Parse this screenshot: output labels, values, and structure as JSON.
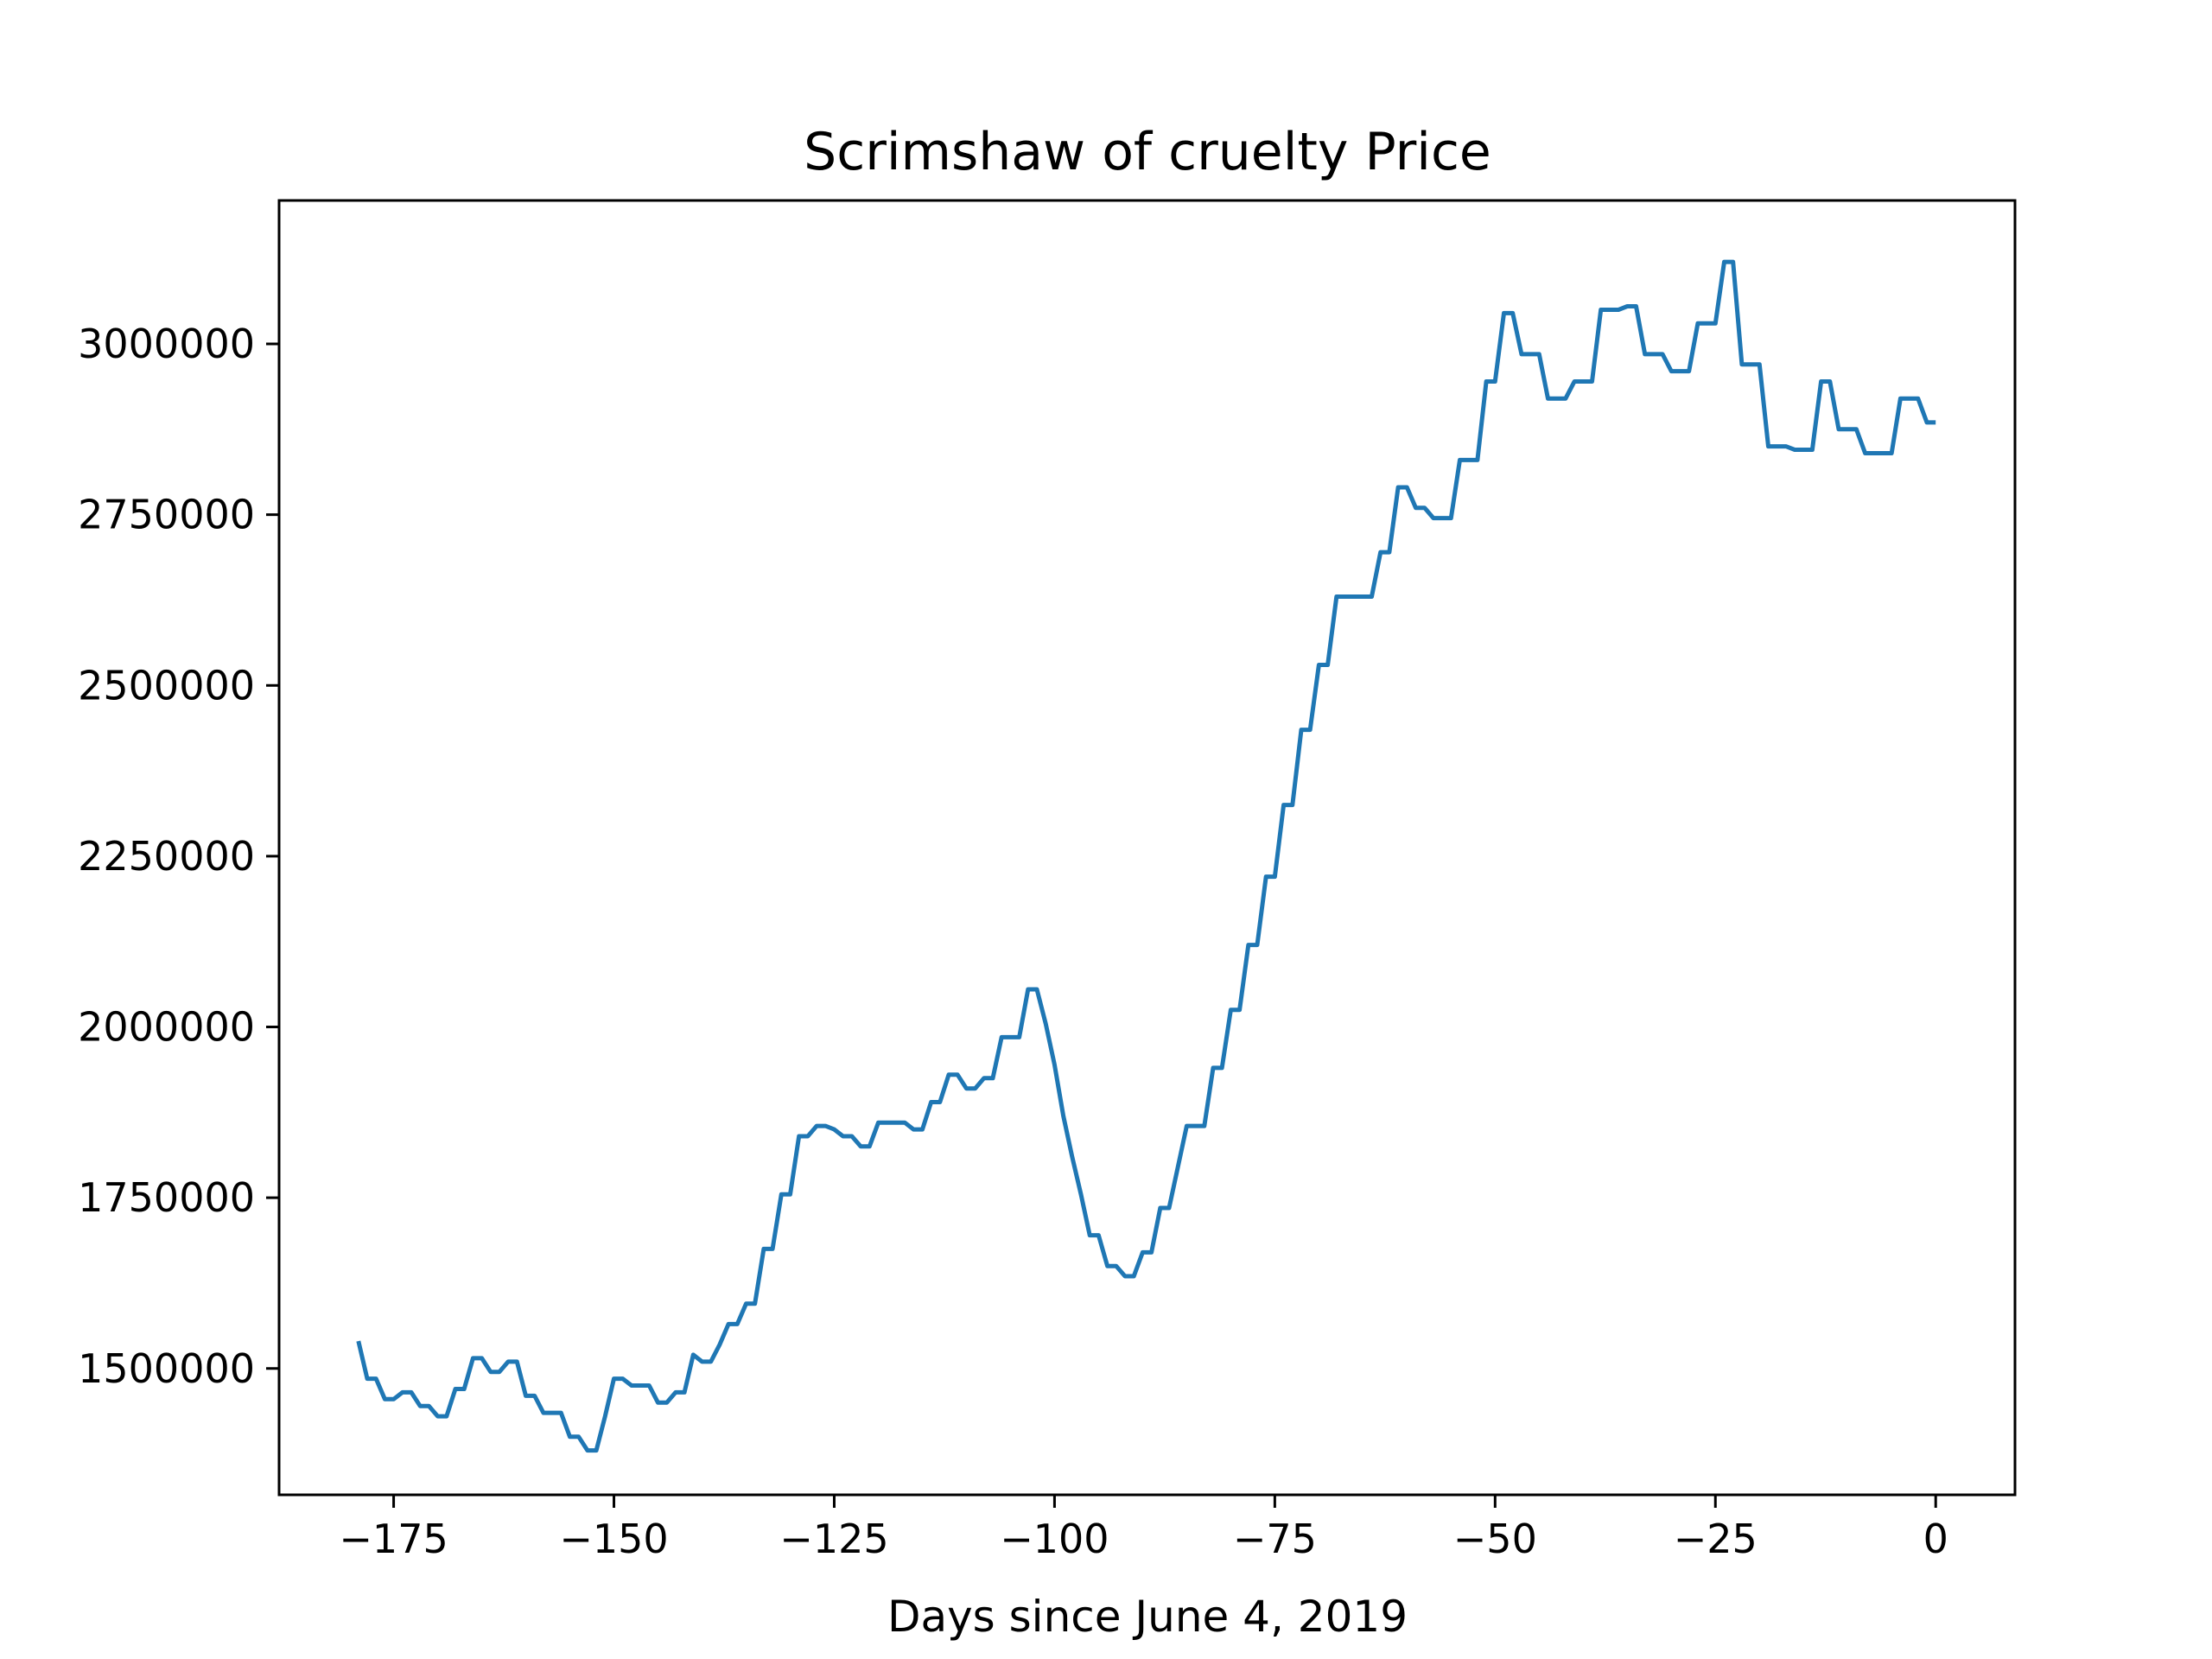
{
  "chart_data": {
    "type": "line",
    "title": "Scrimshaw of cruelty Price",
    "xlabel": "Days since June 4, 2019",
    "ylabel": "",
    "xlim": [
      -188,
      9
    ],
    "ylim": [
      1315000,
      3210000
    ],
    "x_ticks": [
      -175,
      -150,
      -125,
      -100,
      -75,
      -50,
      -25,
      0
    ],
    "x_tick_labels": [
      "−175",
      "−150",
      "−125",
      "−100",
      "−75",
      "−50",
      "−25",
      "0"
    ],
    "y_ticks": [
      1500000,
      1750000,
      2000000,
      2250000,
      2500000,
      2750000,
      3000000
    ],
    "y_tick_labels": [
      "1500000",
      "1750000",
      "2000000",
      "2250000",
      "2500000",
      "2750000",
      "3000000"
    ],
    "grid": false,
    "colors": {
      "line": "#1f77b4",
      "axes": "#000000",
      "background": "#ffffff"
    },
    "series": [
      {
        "x": [
          -179,
          -178,
          -177,
          -176,
          -175,
          -174,
          -173,
          -172,
          -171,
          -170,
          -169,
          -168,
          -167,
          -166,
          -165,
          -164,
          -163,
          -162,
          -161,
          -160,
          -159,
          -158,
          -157,
          -156,
          -155,
          -154,
          -153,
          -152,
          -151,
          -150,
          -149,
          -148,
          -147,
          -146,
          -145,
          -144,
          -143,
          -142,
          -141,
          -140,
          -139,
          -138,
          -137,
          -136,
          -135,
          -134,
          -133,
          -132,
          -131,
          -130,
          -129,
          -128,
          -127,
          -126,
          -125,
          -124,
          -123,
          -122,
          -121,
          -120,
          -119,
          -118,
          -117,
          -116,
          -115,
          -114,
          -113,
          -112,
          -111,
          -110,
          -109,
          -108,
          -107,
          -106,
          -105,
          -104,
          -103,
          -102,
          -101,
          -100,
          -99,
          -98,
          -97,
          -96,
          -95,
          -94,
          -93,
          -92,
          -91,
          -90,
          -89,
          -88,
          -87,
          -86,
          -85,
          -84,
          -83,
          -82,
          -81,
          -80,
          -79,
          -78,
          -77,
          -76,
          -75,
          -74,
          -73,
          -72,
          -71,
          -70,
          -69,
          -68,
          -67,
          -66,
          -65,
          -64,
          -63,
          -62,
          -61,
          -60,
          -59,
          -58,
          -57,
          -56,
          -55,
          -54,
          -53,
          -52,
          -51,
          -50,
          -49,
          -48,
          -47,
          -46,
          -45,
          -44,
          -43,
          -42,
          -41,
          -40,
          -39,
          -38,
          -37,
          -36,
          -35,
          -34,
          -33,
          -32,
          -31,
          -30,
          -29,
          -28,
          -27,
          -26,
          -25,
          -24,
          -23,
          -22,
          -21,
          -20,
          -19,
          -18,
          -17,
          -16,
          -15,
          -14,
          -13,
          -12,
          -11,
          -10,
          -9,
          -8,
          -7,
          -6,
          -5,
          -4,
          -3,
          -2,
          -1,
          0
        ],
        "y": [
          1540000,
          1485000,
          1485000,
          1455000,
          1455000,
          1465000,
          1465000,
          1445000,
          1445000,
          1430000,
          1430000,
          1470000,
          1470000,
          1515000,
          1515000,
          1495000,
          1495000,
          1510000,
          1510000,
          1460000,
          1460000,
          1435000,
          1435000,
          1435000,
          1400000,
          1400000,
          1380000,
          1380000,
          1430000,
          1485000,
          1485000,
          1475000,
          1475000,
          1475000,
          1450000,
          1450000,
          1465000,
          1465000,
          1520000,
          1510000,
          1510000,
          1535000,
          1565000,
          1565000,
          1595000,
          1595000,
          1675000,
          1675000,
          1755000,
          1755000,
          1840000,
          1840000,
          1855000,
          1855000,
          1850000,
          1840000,
          1840000,
          1825000,
          1825000,
          1860000,
          1860000,
          1860000,
          1860000,
          1850000,
          1850000,
          1890000,
          1890000,
          1930000,
          1930000,
          1910000,
          1910000,
          1925000,
          1925000,
          1985000,
          1985000,
          1985000,
          2055000,
          2055000,
          2005000,
          1945000,
          1870000,
          1810000,
          1755000,
          1695000,
          1695000,
          1650000,
          1650000,
          1635000,
          1635000,
          1670000,
          1670000,
          1735000,
          1735000,
          1795000,
          1855000,
          1855000,
          1855000,
          1940000,
          1940000,
          2025000,
          2025000,
          2120000,
          2120000,
          2220000,
          2220000,
          2325000,
          2325000,
          2435000,
          2435000,
          2530000,
          2530000,
          2630000,
          2630000,
          2630000,
          2630000,
          2630000,
          2695000,
          2695000,
          2790000,
          2790000,
          2760000,
          2760000,
          2745000,
          2745000,
          2745000,
          2830000,
          2830000,
          2830000,
          2945000,
          2945000,
          3045000,
          3045000,
          2985000,
          2985000,
          2985000,
          2920000,
          2920000,
          2920000,
          2945000,
          2945000,
          2945000,
          3050000,
          3050000,
          3050000,
          3055000,
          3055000,
          2985000,
          2985000,
          2985000,
          2960000,
          2960000,
          2960000,
          3030000,
          3030000,
          3030000,
          3120000,
          3120000,
          2970000,
          2970000,
          2970000,
          2850000,
          2850000,
          2850000,
          2845000,
          2845000,
          2845000,
          2945000,
          2945000,
          2875000,
          2875000,
          2875000,
          2840000,
          2840000,
          2840000,
          2840000,
          2920000,
          2920000,
          2920000,
          2885000,
          2885000
        ]
      }
    ]
  }
}
